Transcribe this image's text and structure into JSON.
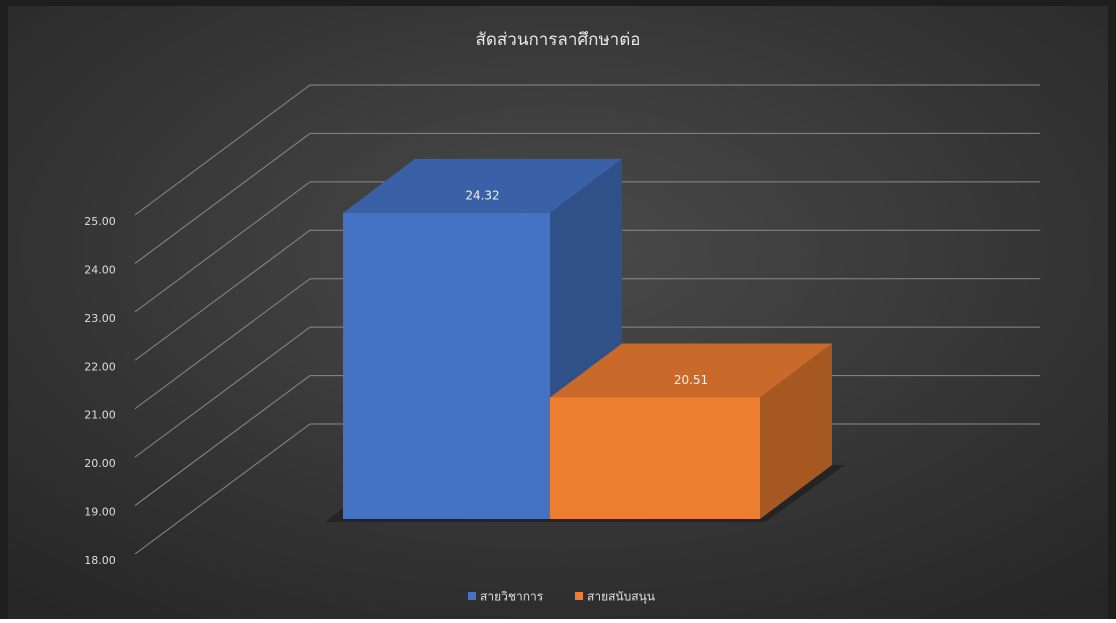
{
  "chart_data": {
    "type": "bar3d",
    "title": "สัดส่วนการลาศึกษาต่อ",
    "categories": [
      null
    ],
    "series": [
      {
        "name": "สายวิชาการ",
        "color": "#4472c4",
        "values": [
          24.32
        ]
      },
      {
        "name": "สายสนับสนุน",
        "color": "#ed7d31",
        "values": [
          20.51
        ]
      }
    ],
    "ylim": [
      18,
      25
    ],
    "yticks": [
      {
        "value": 18,
        "label": "18.00"
      },
      {
        "value": 19,
        "label": "19.00"
      },
      {
        "value": 20,
        "label": "20.00"
      },
      {
        "value": 21,
        "label": "21.00"
      },
      {
        "value": 22,
        "label": "22.00"
      },
      {
        "value": 23,
        "label": "23.00"
      },
      {
        "value": 24,
        "label": "24.00"
      },
      {
        "value": 25,
        "label": "25.00"
      }
    ],
    "grid": true,
    "legend": "bottom"
  }
}
